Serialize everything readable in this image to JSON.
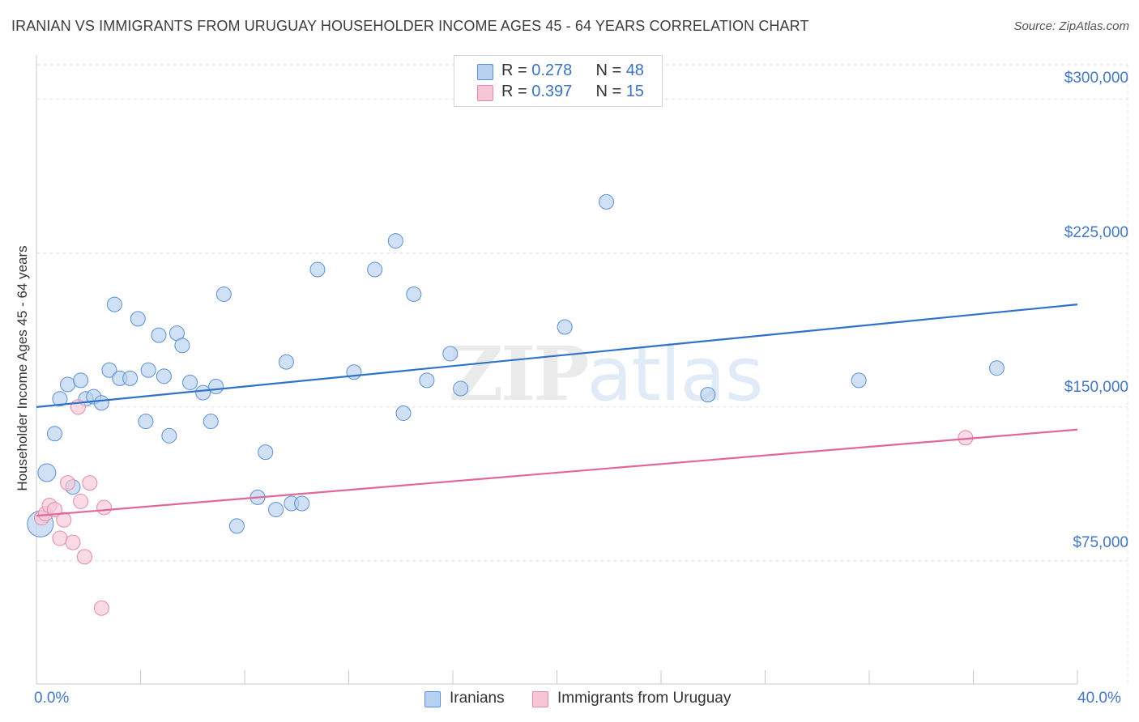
{
  "chart_data": {
    "type": "scatter",
    "title": "IRANIAN VS IMMIGRANTS FROM URUGUAY HOUSEHOLDER INCOME AGES 45 - 64 YEARS CORRELATION CHART",
    "source": "Source: ZipAtlas.com",
    "ylabel": "Householder Income Ages 45 - 64 years",
    "xlim": [
      0,
      40
    ],
    "ylim": [
      15000,
      320000
    ],
    "y_ticks": [
      75000,
      150000,
      225000,
      300000
    ],
    "y_tick_labels": [
      "$75,000",
      "$150,000",
      "$225,000",
      "$300,000"
    ],
    "x_tick_labels": [
      "0.0%",
      "40.0%"
    ],
    "watermark": {
      "zip": "ZIP",
      "atlas": "atlas"
    },
    "legend": [
      {
        "r_label": "R = ",
        "r_value": "0.278",
        "n_label": "N = ",
        "n_value": "48"
      },
      {
        "r_label": "R = ",
        "r_value": "0.397",
        "n_label": "N = ",
        "n_value": "15"
      }
    ],
    "series": [
      {
        "name": "Iranians",
        "color": "#5b8fd6",
        "fill": "#b9d1f0",
        "trend": {
          "x0": 0,
          "y0": 150000,
          "x1": 40,
          "y1": 200000,
          "color": "#2f73c9"
        },
        "points": [
          [
            0.15,
            93000
          ],
          [
            0.4,
            118000
          ],
          [
            0.7,
            137000
          ],
          [
            0.9,
            154000
          ],
          [
            1.2,
            161000
          ],
          [
            1.4,
            111000
          ],
          [
            1.7,
            163000
          ],
          [
            1.9,
            154000
          ],
          [
            2.2,
            155000
          ],
          [
            2.5,
            152000
          ],
          [
            2.8,
            168000
          ],
          [
            3.0,
            200000
          ],
          [
            3.2,
            164000
          ],
          [
            3.6,
            164000
          ],
          [
            3.9,
            193000
          ],
          [
            4.2,
            143000
          ],
          [
            4.3,
            168000
          ],
          [
            4.7,
            185000
          ],
          [
            4.9,
            165000
          ],
          [
            5.1,
            136000
          ],
          [
            5.4,
            186000
          ],
          [
            5.6,
            180000
          ],
          [
            5.9,
            162000
          ],
          [
            6.4,
            157000
          ],
          [
            6.7,
            143000
          ],
          [
            6.9,
            160000
          ],
          [
            7.2,
            205000
          ],
          [
            7.7,
            92000
          ],
          [
            8.5,
            106000
          ],
          [
            8.8,
            128000
          ],
          [
            9.2,
            100000
          ],
          [
            9.6,
            172000
          ],
          [
            9.8,
            103000
          ],
          [
            10.2,
            103000
          ],
          [
            10.8,
            217000
          ],
          [
            12.2,
            167000
          ],
          [
            13.0,
            217000
          ],
          [
            13.8,
            231000
          ],
          [
            14.1,
            147000
          ],
          [
            14.5,
            205000
          ],
          [
            15.0,
            163000
          ],
          [
            15.9,
            176000
          ],
          [
            16.3,
            159000
          ],
          [
            20.3,
            189000
          ],
          [
            21.9,
            250000
          ],
          [
            25.8,
            156000
          ],
          [
            31.6,
            163000
          ],
          [
            36.9,
            169000
          ]
        ]
      },
      {
        "name": "Immigrants from Uruguay",
        "color": "#e58aab",
        "fill": "#f7c6d6",
        "trend": {
          "x0": 0,
          "y0": 97000,
          "x1": 40,
          "y1": 139000,
          "color": "#e0679a"
        },
        "points": [
          [
            0.2,
            96000
          ],
          [
            0.35,
            98000
          ],
          [
            0.5,
            102000
          ],
          [
            0.7,
            100000
          ],
          [
            0.9,
            86000
          ],
          [
            1.05,
            95000
          ],
          [
            1.2,
            113000
          ],
          [
            1.4,
            84000
          ],
          [
            1.6,
            150000
          ],
          [
            1.7,
            104000
          ],
          [
            1.85,
            77000
          ],
          [
            2.05,
            113000
          ],
          [
            2.5,
            52000
          ],
          [
            2.6,
            101000
          ],
          [
            35.7,
            135000
          ]
        ]
      }
    ]
  }
}
